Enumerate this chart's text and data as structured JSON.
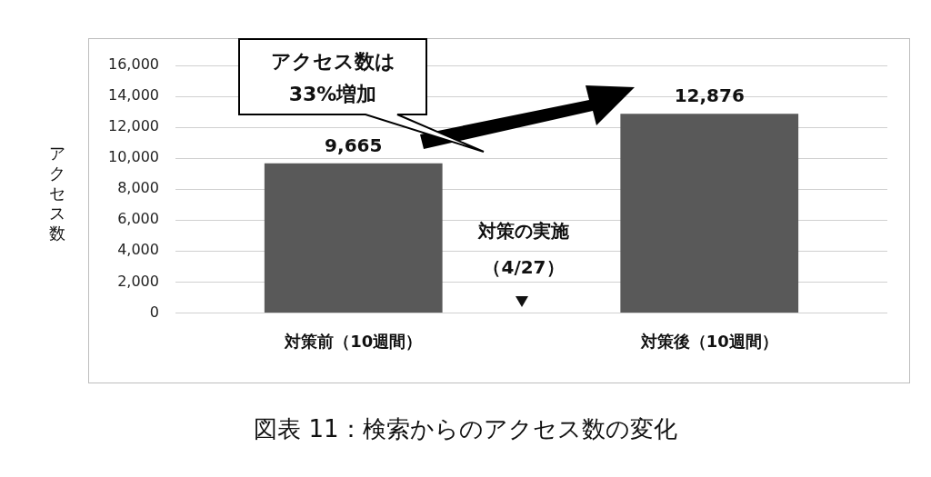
{
  "chart_data": {
    "type": "bar",
    "ylabel": "アクセス数",
    "categories": [
      "対策前（10週間）",
      "対策後（10週間）"
    ],
    "values": [
      9665,
      12876
    ],
    "color": "#595959",
    "value_labels": [
      "9,665",
      "12,876"
    ],
    "ylim": [
      0,
      16000
    ],
    "yticks": [
      {
        "value": 0,
        "label": "0"
      },
      {
        "value": 2000,
        "label": "2,000"
      },
      {
        "value": 4000,
        "label": "4,000"
      },
      {
        "value": 6000,
        "label": "6,000"
      },
      {
        "value": 8000,
        "label": "8,000"
      },
      {
        "value": 10000,
        "label": "10,000"
      },
      {
        "value": 12000,
        "label": "12,000"
      },
      {
        "value": 14000,
        "label": "14,000"
      },
      {
        "value": 16000,
        "label": "16,000"
      }
    ],
    "grid": "y",
    "legend": false,
    "annotations": [
      "アクセス数は33%増加",
      "対策の実施（4/27）",
      "図表 11：検索からのアクセス数の変化"
    ]
  }
}
